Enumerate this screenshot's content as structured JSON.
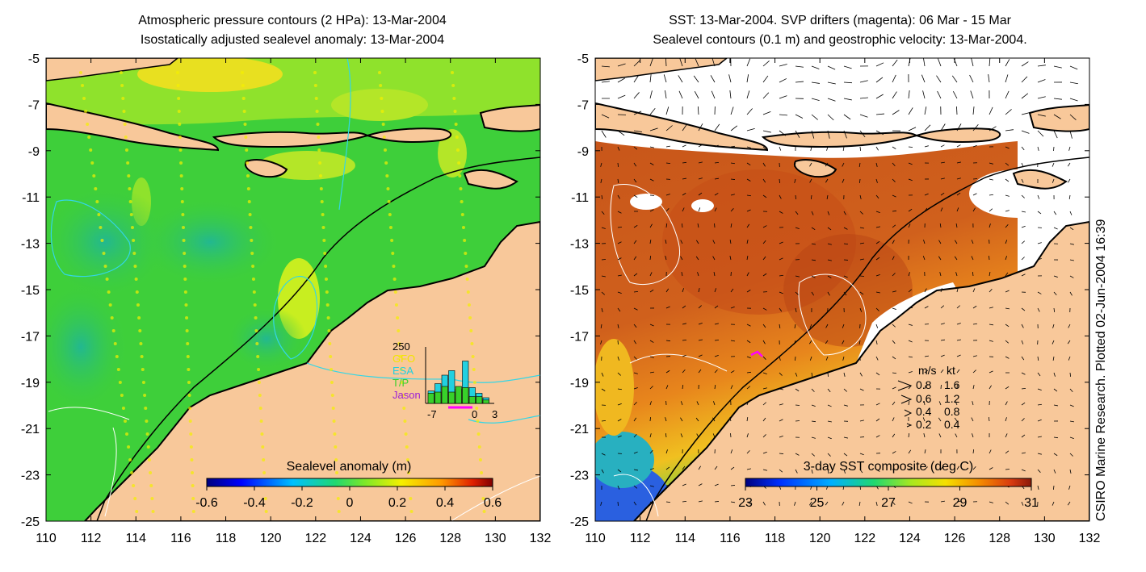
{
  "left_panel": {
    "title_line1": "Atmospheric pressure contours (2 HPa): 13-Mar-2004",
    "title_line2": "Isostatically adjusted sealevel anomaly: 13-Mar-2004",
    "lat_ticks": [
      "-5",
      "-7",
      "-9",
      "-11",
      "-13",
      "-15",
      "-17",
      "-19",
      "-21",
      "-23",
      "-25"
    ],
    "lon_ticks": [
      "110",
      "112",
      "114",
      "116",
      "118",
      "120",
      "122",
      "124",
      "126",
      "128",
      "130",
      "132"
    ],
    "colorbar": {
      "title": "Sealevel anomaly (m)",
      "labels": [
        "-0.6",
        "-0.4",
        "-0.2",
        "0",
        "0.2",
        "0.4",
        "0.6"
      ]
    },
    "inset": {
      "ymax_label": "250",
      "legend": [
        {
          "label": "GFO",
          "color": "#f2e400"
        },
        {
          "label": "ESA",
          "color": "#22d0e0"
        },
        {
          "label": "T/P",
          "color": "#38d02a"
        },
        {
          "label": "Jason",
          "color": "#9b1fd6"
        }
      ],
      "x_labels": [
        "-7",
        "0",
        "3"
      ],
      "bars_esa": [
        0.22,
        0.35,
        0.5,
        0.58,
        0.25,
        0.75,
        0.28,
        0.18,
        0.1
      ],
      "bars_tp": [
        0.18,
        0.2,
        0.3,
        0.2,
        0.3,
        0.28,
        0.12,
        0.12,
        0.06
      ]
    },
    "colors": {
      "land": "#f8c89a",
      "sea_main": "#3ecf3a",
      "sea_high": "#9be82a",
      "sea_low": "#2ab88a",
      "pressure_contour": "#33d6e6"
    }
  },
  "right_panel": {
    "title_line1": "SST: 13-Mar-2004. SVP drifters (magenta): 06 Mar - 15 Mar",
    "title_line2": "Sealevel contours (0.1 m) and geostrophic velocity: 13-Mar-2004.",
    "lat_ticks": [
      "-5",
      "-7",
      "-9",
      "-11",
      "-13",
      "-15",
      "-17",
      "-19",
      "-21",
      "-23",
      "-25"
    ],
    "lon_ticks": [
      "110",
      "112",
      "114",
      "116",
      "118",
      "120",
      "122",
      "124",
      "126",
      "128",
      "130",
      "132"
    ],
    "colorbar": {
      "title": "3-day SST composite (deg C)",
      "labels": [
        "23",
        "25",
        "27",
        "29",
        "31"
      ]
    },
    "velocity_legend": {
      "header_ms": "m/s",
      "header_kt": "kt",
      "rows": [
        {
          "ms": "0.8",
          "kt": "1.6"
        },
        {
          "ms": "0.6",
          "kt": "1.2"
        },
        {
          "ms": "0.4",
          "kt": "0.8"
        },
        {
          "ms": "0.2",
          "kt": "0.4"
        }
      ]
    },
    "colors": {
      "land": "#f8c89a",
      "sst_warm": "#d8621a",
      "sst_hot": "#b83a12",
      "sst_mid": "#f0a020",
      "sst_cool": "#3cc070",
      "sst_cold": "#2a60e0",
      "drifter": "#ff00ff"
    }
  },
  "credit": "CSIRO Marine Research. Plotted 02-Jun-2004 16:39"
}
